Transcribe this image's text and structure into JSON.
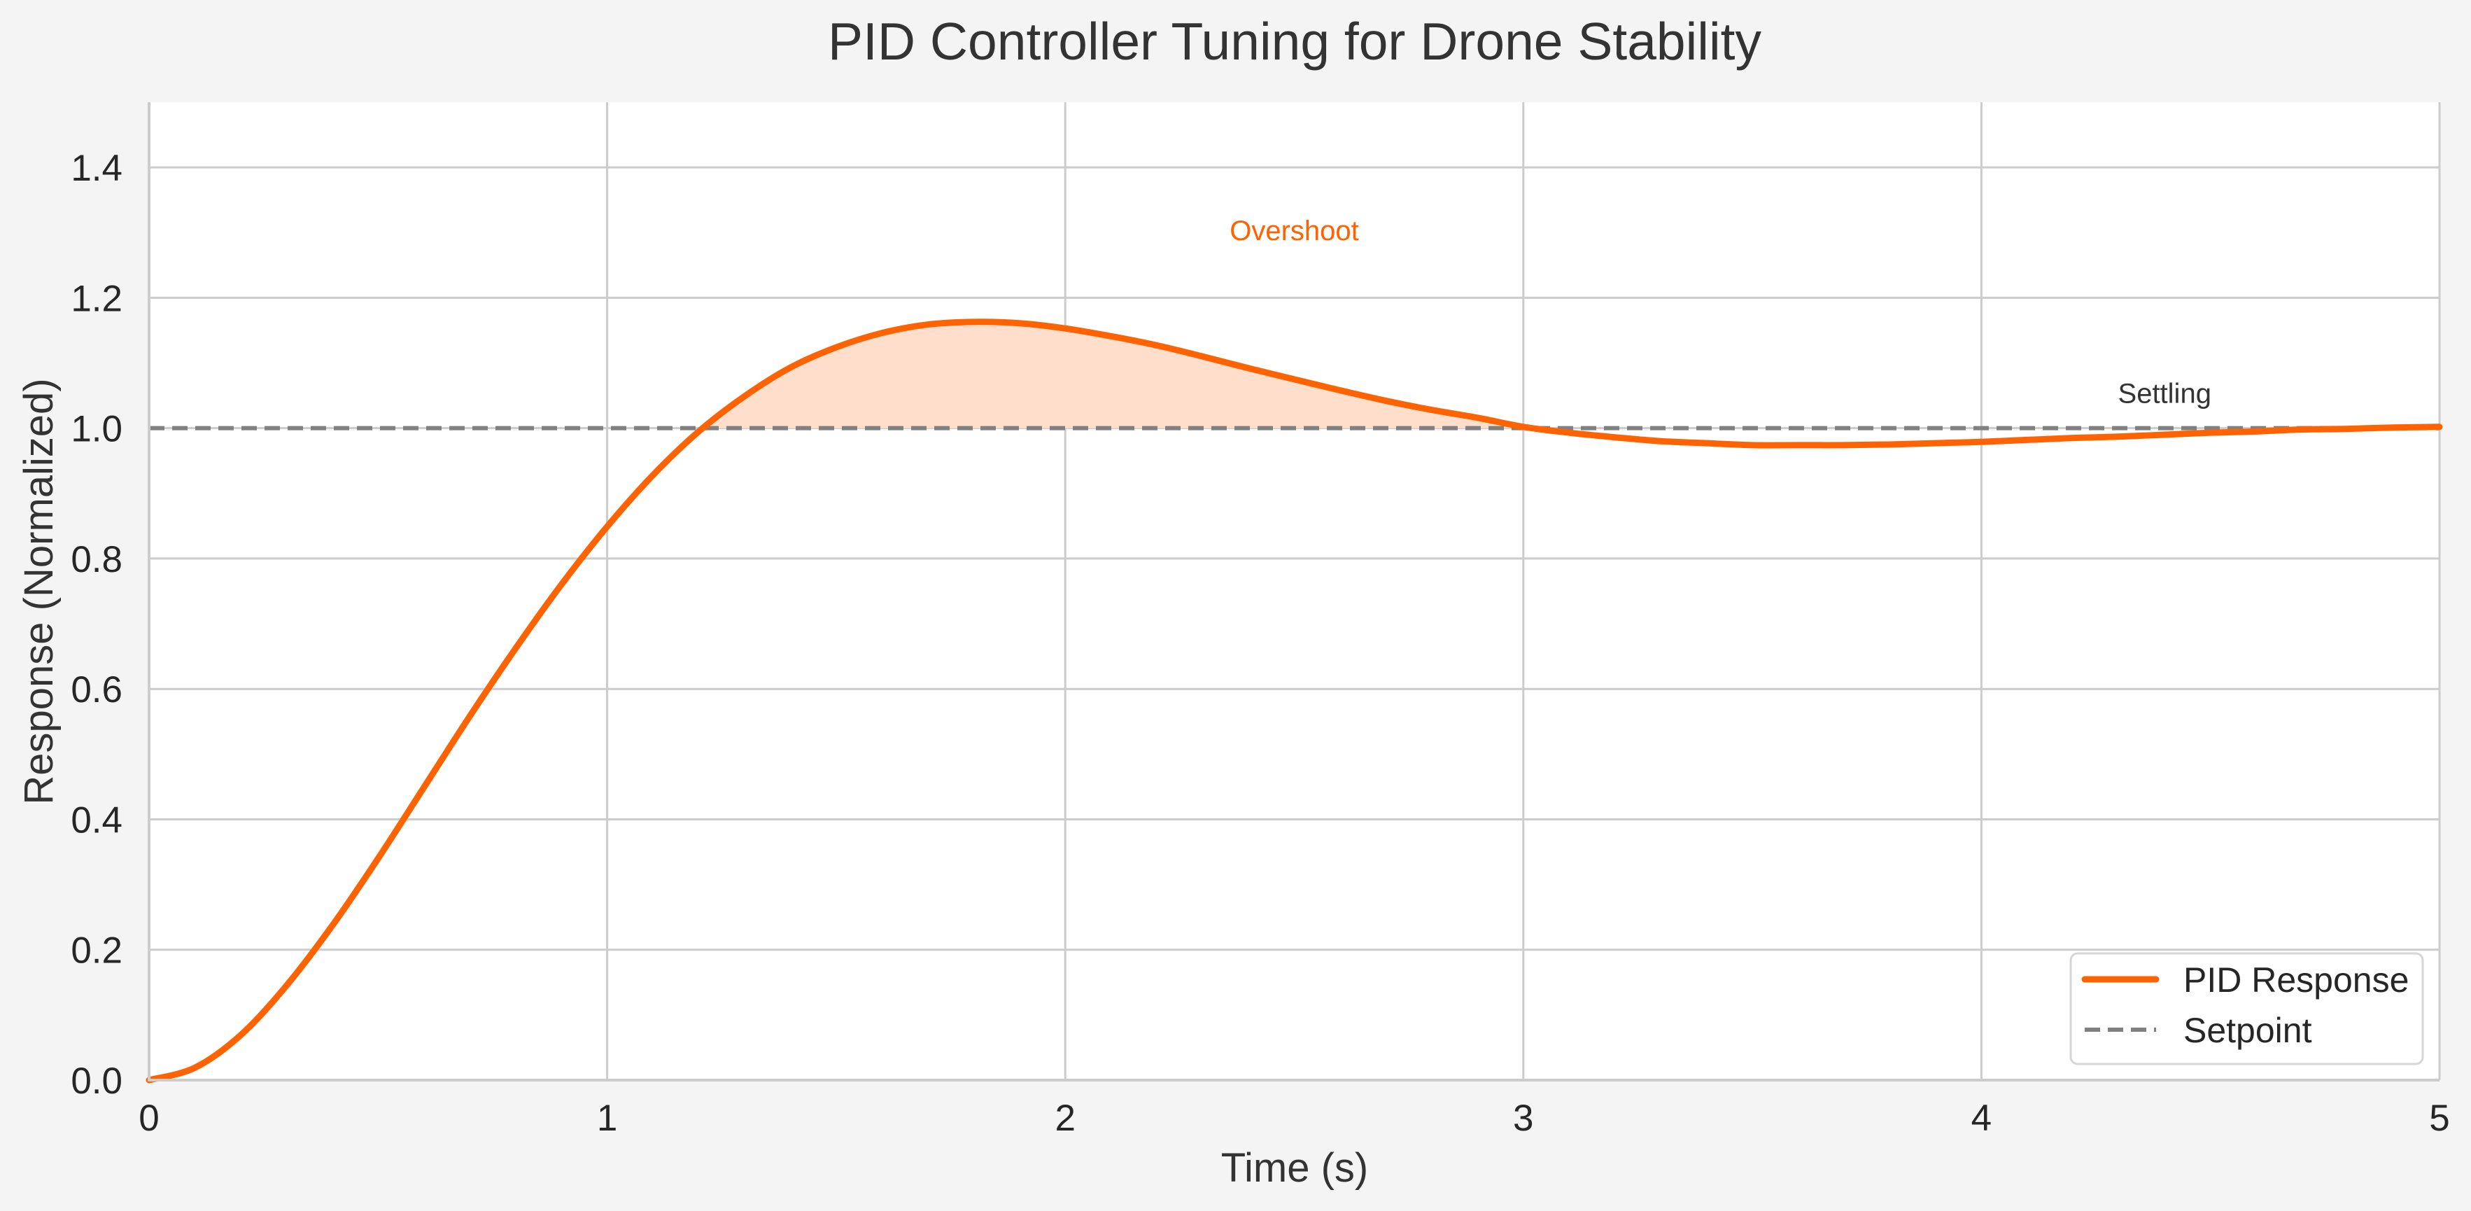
{
  "chart_data": {
    "type": "line",
    "title": "PID Controller Tuning for Drone Stability",
    "xlabel": "Time (s)",
    "ylabel": "Response (Normalized)",
    "xlim": [
      0,
      5
    ],
    "ylim": [
      0,
      1.5
    ],
    "xticks": [
      0,
      1,
      2,
      3,
      4,
      5
    ],
    "xtick_labels": [
      "0",
      "1",
      "2",
      "3",
      "4",
      "5"
    ],
    "yticks": [
      0.0,
      0.2,
      0.4,
      0.6,
      0.8,
      1.0,
      1.2,
      1.4
    ],
    "ytick_labels": [
      "0.0",
      "0.2",
      "0.4",
      "0.6",
      "0.8",
      "1.0",
      "1.2",
      "1.4"
    ],
    "grid": true,
    "legend_position": "bottom-right",
    "series": [
      {
        "name": "PID Response",
        "style": "solid",
        "color": "#FF6200",
        "x": [
          0,
          0.1,
          0.2,
          0.3,
          0.4,
          0.5,
          0.6,
          0.7,
          0.8,
          0.9,
          1.0,
          1.1,
          1.2,
          1.3,
          1.4,
          1.5,
          1.6,
          1.7,
          1.8,
          1.9,
          2.0,
          2.1,
          2.2,
          2.3,
          2.4,
          2.5,
          2.6,
          2.7,
          2.8,
          2.9,
          3.0,
          3.1,
          3.2,
          3.3,
          3.4,
          3.5,
          3.6,
          3.7,
          3.8,
          3.9,
          4.0,
          4.1,
          4.2,
          4.3,
          4.4,
          4.5,
          4.6,
          4.7,
          4.8,
          4.9,
          5.0
        ],
        "y": [
          0,
          0.019,
          0.069,
          0.145,
          0.237,
          0.34,
          0.449,
          0.558,
          0.662,
          0.76,
          0.849,
          0.928,
          0.995,
          1.049,
          1.093,
          1.124,
          1.146,
          1.159,
          1.163,
          1.161,
          1.153,
          1.141,
          1.127,
          1.11,
          1.092,
          1.075,
          1.058,
          1.042,
          1.028,
          1.016,
          1.002,
          0.993,
          0.986,
          0.98,
          0.977,
          0.974,
          0.974,
          0.974,
          0.975,
          0.977,
          0.979,
          0.982,
          0.985,
          0.987,
          0.99,
          0.993,
          0.995,
          0.998,
          0.999,
          1.001,
          1.002
        ]
      },
      {
        "name": "Setpoint",
        "style": "dashed",
        "color": "#808080",
        "x": [
          0,
          5
        ],
        "y": [
          1.0,
          1.0
        ]
      }
    ],
    "fill": {
      "between": [
        "PID Response",
        "Setpoint"
      ],
      "where": "PID Response > Setpoint",
      "color": "#FFDFCC"
    },
    "annotations": [
      {
        "text": "Overshoot",
        "x": 2.5,
        "y": 1.3,
        "color": "#FF6200"
      },
      {
        "text": "Settling",
        "x": 4.4,
        "y": 1.05,
        "color": "#333333"
      }
    ]
  }
}
